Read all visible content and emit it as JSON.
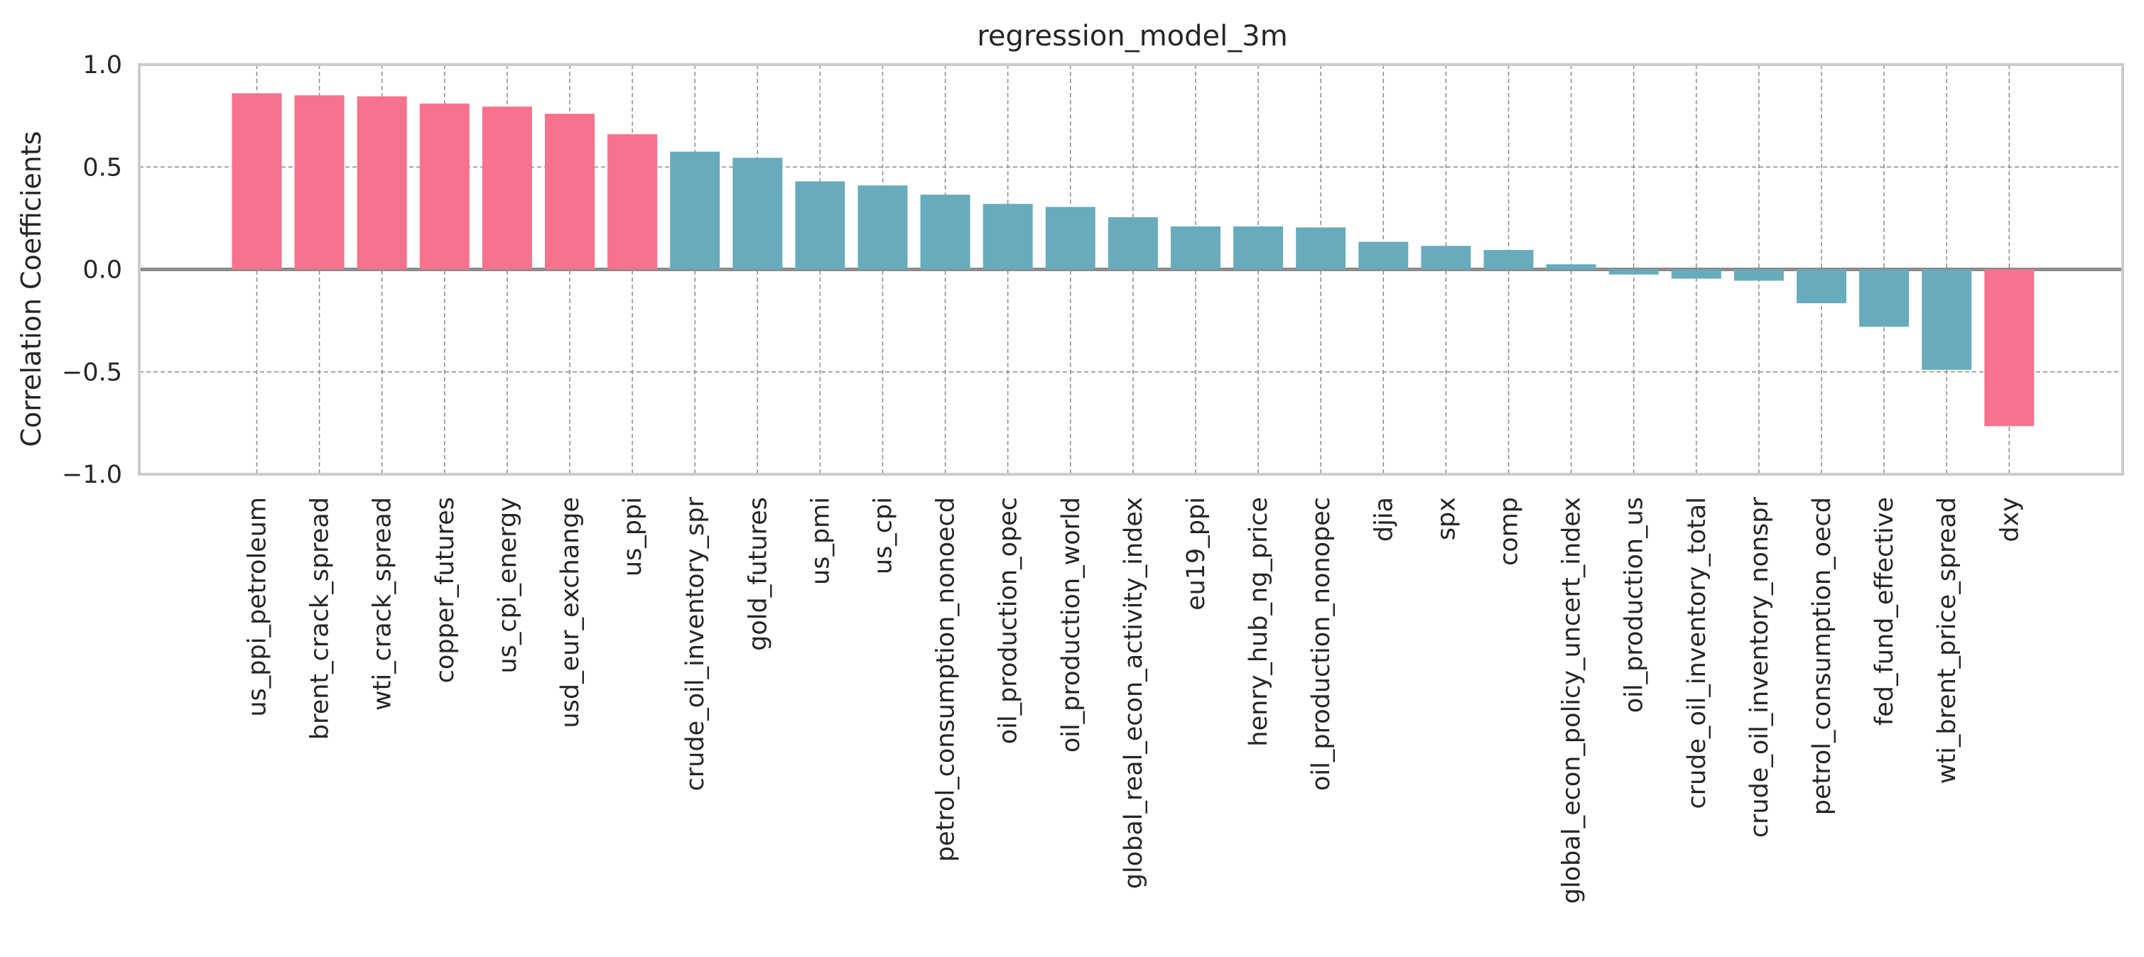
{
  "chart_data": {
    "type": "bar",
    "title": "regression_model_3m",
    "xlabel": "",
    "ylabel": "Correlation Coefficients",
    "ylim": [
      -1.0,
      1.0
    ],
    "yticks": [
      1.0,
      0.5,
      0.0,
      -0.5,
      -1.0
    ],
    "ytick_labels": [
      "1.0",
      "0.5",
      "0.0",
      "−0.5",
      "−1.0"
    ],
    "grid": true,
    "legend": "none",
    "colors": {
      "highlight": "#F7728C",
      "normal": "#68ABBD",
      "zero_line": "#8C8C8C",
      "grid": "#8C8C8C",
      "frame": "#CCCCCC"
    },
    "categories": [
      "us_ppi_petroleum",
      "brent_crack_spread",
      "wti_crack_spread",
      "copper_futures",
      "us_cpi_energy",
      "usd_eur_exchange",
      "us_ppi",
      "crude_oil_inventory_spr",
      "gold_futures",
      "us_pmi",
      "us_cpi",
      "petrol_consumption_nonoecd",
      "oil_production_opec",
      "oil_production_world",
      "global_real_econ_activity_index",
      "eu19_ppi",
      "henry_hub_ng_price",
      "oil_production_nonopec",
      "djia",
      "spx",
      "comp",
      "global_econ_policy_uncert_index",
      "oil_production_us",
      "crude_oil_inventory_total",
      "crude_oil_inventory_nonspr",
      "petrol_consumption_oecd",
      "fed_fund_effective",
      "wti_brent_price_spread",
      "dxy"
    ],
    "values": [
      0.86,
      0.85,
      0.845,
      0.81,
      0.795,
      0.76,
      0.66,
      0.575,
      0.545,
      0.43,
      0.41,
      0.365,
      0.32,
      0.305,
      0.255,
      0.21,
      0.21,
      0.205,
      0.135,
      0.115,
      0.095,
      0.025,
      -0.025,
      -0.045,
      -0.055,
      -0.165,
      -0.28,
      -0.49,
      -0.765
    ],
    "highlighted": [
      true,
      true,
      true,
      true,
      true,
      true,
      true,
      false,
      false,
      false,
      false,
      false,
      false,
      false,
      false,
      false,
      false,
      false,
      false,
      false,
      false,
      false,
      false,
      false,
      false,
      false,
      false,
      false,
      true
    ]
  }
}
